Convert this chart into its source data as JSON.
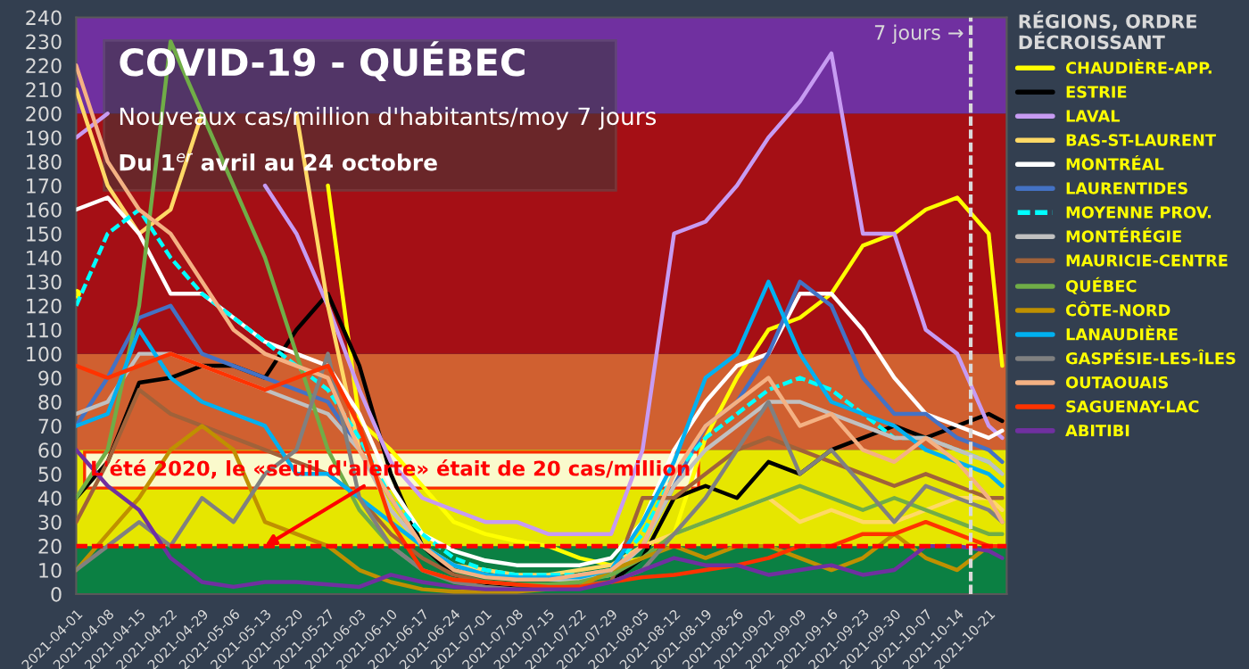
{
  "chart_data": {
    "type": "line",
    "title": "COVID-19 - QUÉBEC",
    "subtitle": "Nouveaux cas/million d'habitants/moy 7 jours",
    "legend_title": "RÉGIONS, ORDRE\nDÉCROISSANT",
    "annotations": [
      "Du 1$^{er}$ avril au 24 octobre",
      {
        "text": "L'été 2020, le «seuil d'alerte» était de 20 cas/million",
        "x": "2021-05-13",
        "y": 20
      }
    ],
    "x": [
      "2021-04-01",
      "2021-04-08",
      "2021-04-15",
      "2021-04-22",
      "2021-04-29",
      "2021-05-06",
      "2021-05-13",
      "2021-05-20",
      "2021-05-27",
      "2021-06-03",
      "2021-06-10",
      "2021-06-17",
      "2021-06-24",
      "2021-07-01",
      "2021-07-08",
      "2021-07-15",
      "2021-07-22",
      "2021-07-29",
      "2021-08-05",
      "2021-08-12",
      "2021-08-19",
      "2021-08-26",
      "2021-09-02",
      "2021-09-09",
      "2021-09-16",
      "2021-09-23",
      "2021-09-30",
      "2021-10-07",
      "2021-10-14",
      "2021-10-21",
      "2021-10-24"
    ],
    "series": [
      {
        "name": "CHAUDIÈRE-APP.",
        "color": "#ffff00",
        "values": [
          125,
          null,
          null,
          null,
          null,
          null,
          null,
          null,
          170,
          72,
          60,
          45,
          30,
          25,
          22,
          20,
          15,
          12,
          15,
          25,
          65,
          90,
          110,
          115,
          125,
          145,
          150,
          160,
          165,
          150,
          95
        ]
      },
      {
        "name": "ESTRIE",
        "color": "#000000",
        "values": [
          40,
          55,
          88,
          90,
          95,
          95,
          90,
          110,
          125,
          95,
          50,
          20,
          8,
          4,
          3,
          3,
          3,
          5,
          15,
          40,
          45,
          40,
          55,
          50,
          60,
          65,
          70,
          65,
          70,
          75,
          72
        ]
      },
      {
        "name": "LAVAL",
        "color": "#c79bf2",
        "values": [
          190,
          200,
          null,
          null,
          null,
          null,
          170,
          150,
          120,
          85,
          55,
          40,
          35,
          30,
          30,
          25,
          25,
          25,
          60,
          150,
          155,
          170,
          190,
          205,
          225,
          150,
          150,
          110,
          100,
          70,
          65
        ]
      },
      {
        "name": "BAS-ST-LAURENT",
        "color": "#ffd966",
        "values": [
          210,
          170,
          150,
          160,
          200,
          null,
          null,
          200,
          120,
          60,
          35,
          20,
          12,
          10,
          8,
          8,
          10,
          12,
          20,
          25,
          30,
          35,
          40,
          30,
          35,
          30,
          30,
          35,
          40,
          40,
          35
        ]
      },
      {
        "name": "MONTRÉAL",
        "color": "#ffffff",
        "values": [
          160,
          165,
          150,
          125,
          125,
          115,
          105,
          100,
          95,
          75,
          45,
          25,
          18,
          14,
          12,
          12,
          12,
          15,
          30,
          60,
          80,
          95,
          100,
          125,
          125,
          110,
          90,
          75,
          70,
          65,
          68
        ]
      },
      {
        "name": "LAURENTIDES",
        "color": "#4472c4",
        "values": [
          70,
          90,
          115,
          120,
          100,
          95,
          90,
          85,
          80,
          60,
          40,
          20,
          12,
          8,
          6,
          6,
          6,
          8,
          20,
          45,
          70,
          80,
          100,
          130,
          120,
          90,
          75,
          75,
          65,
          60,
          55
        ]
      },
      {
        "name": "MOYENNE PROV.",
        "color": "#00ffff",
        "line_style": "dashed",
        "values": [
          120,
          150,
          160,
          140,
          125,
          115,
          105,
          95,
          85,
          65,
          40,
          25,
          15,
          10,
          8,
          8,
          8,
          10,
          25,
          50,
          65,
          75,
          85,
          90,
          85,
          75,
          65,
          65,
          60,
          55,
          50
        ]
      },
      {
        "name": "MONTÉRÉGIE",
        "color": "#c0c0c0",
        "values": [
          75,
          80,
          100,
          100,
          95,
          90,
          85,
          80,
          75,
          60,
          35,
          20,
          12,
          8,
          6,
          6,
          6,
          8,
          20,
          45,
          60,
          70,
          80,
          80,
          75,
          70,
          65,
          65,
          60,
          55,
          50
        ]
      },
      {
        "name": "MAURICIE-CENTRE",
        "color": "#a0623a",
        "values": [
          30,
          55,
          85,
          75,
          70,
          65,
          60,
          55,
          50,
          40,
          25,
          15,
          8,
          5,
          4,
          4,
          4,
          5,
          40,
          40,
          50,
          60,
          65,
          60,
          55,
          50,
          45,
          50,
          45,
          40,
          40
        ]
      },
      {
        "name": "QUÉBEC",
        "color": "#70ad47",
        "values": [
          40,
          60,
          120,
          230,
          200,
          170,
          140,
          100,
          60,
          35,
          20,
          10,
          6,
          5,
          4,
          4,
          5,
          8,
          15,
          25,
          30,
          35,
          40,
          45,
          40,
          35,
          40,
          35,
          30,
          25,
          25
        ]
      },
      {
        "name": "CÔTE-NORD",
        "color": "#bf9000",
        "values": [
          10,
          25,
          40,
          60,
          70,
          60,
          30,
          25,
          20,
          10,
          5,
          2,
          1,
          1,
          1,
          2,
          3,
          10,
          15,
          20,
          15,
          20,
          20,
          15,
          10,
          15,
          25,
          15,
          10,
          20,
          20
        ]
      },
      {
        "name": "LANAUDIÈRE",
        "color": "#00b0f0",
        "values": [
          70,
          75,
          110,
          90,
          80,
          75,
          70,
          50,
          50,
          40,
          30,
          20,
          12,
          8,
          7,
          7,
          7,
          10,
          30,
          55,
          90,
          100,
          130,
          100,
          80,
          75,
          70,
          60,
          55,
          50,
          45
        ]
      },
      {
        "name": "GASPÉSIE-LES-ÎLES",
        "color": "#808080",
        "values": [
          10,
          20,
          30,
          20,
          40,
          30,
          50,
          60,
          100,
          40,
          20,
          10,
          5,
          3,
          2,
          2,
          3,
          5,
          10,
          25,
          40,
          60,
          80,
          50,
          60,
          45,
          30,
          45,
          40,
          35,
          30
        ]
      },
      {
        "name": "OUTAOUAIS",
        "color": "#f4b183",
        "values": [
          220,
          180,
          160,
          150,
          130,
          110,
          100,
          95,
          90,
          60,
          40,
          20,
          10,
          7,
          6,
          6,
          8,
          10,
          20,
          50,
          70,
          80,
          90,
          70,
          75,
          60,
          55,
          65,
          55,
          40,
          30
        ]
      },
      {
        "name": "SAGUENAY-LAC",
        "color": "#ff3300",
        "values": [
          95,
          90,
          95,
          100,
          95,
          90,
          85,
          90,
          95,
          70,
          30,
          10,
          6,
          5,
          4,
          3,
          3,
          5,
          7,
          8,
          10,
          12,
          15,
          20,
          20,
          25,
          25,
          30,
          25,
          20,
          20
        ]
      },
      {
        "name": "ABITIBI",
        "color": "#7030a0",
        "values": [
          60,
          45,
          35,
          15,
          5,
          3,
          5,
          5,
          4,
          3,
          8,
          5,
          3,
          2,
          2,
          2,
          2,
          5,
          10,
          15,
          12,
          12,
          8,
          10,
          12,
          8,
          10,
          20,
          20,
          18,
          15
        ]
      }
    ],
    "xlim": [
      "2021-04-01",
      "2021-10-25"
    ],
    "xticks": [
      "2021-04-01",
      "2021-04-08",
      "2021-04-15",
      "2021-04-22",
      "2021-04-29",
      "2021-05-06",
      "2021-05-13",
      "2021-05-20",
      "2021-05-27",
      "2021-06-03",
      "2021-06-10",
      "2021-06-17",
      "2021-06-24",
      "2021-07-01",
      "2021-07-08",
      "2021-07-15",
      "2021-07-22",
      "2021-07-29",
      "2021-08-05",
      "2021-08-12",
      "2021-08-19",
      "2021-08-26",
      "2021-09-02",
      "2021-09-09",
      "2021-09-16",
      "2021-09-23",
      "2021-09-30",
      "2021-10-07",
      "2021-10-14",
      "2021-10-21"
    ],
    "ylim": [
      0,
      240
    ],
    "yticks": [
      0,
      10,
      20,
      30,
      40,
      50,
      60,
      70,
      80,
      90,
      100,
      110,
      120,
      130,
      140,
      150,
      160,
      170,
      180,
      190,
      200,
      210,
      220,
      230,
      240
    ],
    "bands": [
      {
        "axis": "y",
        "from": 0,
        "to": 20,
        "color": "#0b8043"
      },
      {
        "axis": "y",
        "from": 20,
        "to": 60,
        "color": "#e6e600"
      },
      {
        "axis": "y",
        "from": 60,
        "to": 100,
        "color": "#d06030"
      },
      {
        "axis": "y",
        "from": 100,
        "to": 200,
        "color": "#a50f15"
      },
      {
        "axis": "y",
        "from": 200,
        "to": 240,
        "color": "#7030a0"
      }
    ],
    "ref_lines": [
      {
        "axis": "y",
        "value": 20,
        "color": "#ff0000",
        "line_style": "dashed"
      },
      {
        "axis": "x",
        "value": "2021-10-17",
        "label": "7 jours →",
        "color": "#d9d9d9",
        "line_style": "dashed"
      }
    ],
    "grid": false,
    "legend": "right",
    "marker": "none",
    "line_style": "solid"
  }
}
